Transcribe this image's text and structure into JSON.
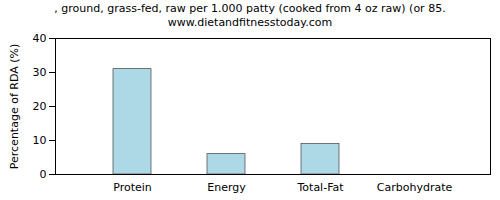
{
  "chart_data": {
    "type": "bar",
    "title": ", ground, grass-fed, raw per 1.000 patty (cooked from 4 oz raw) (or 85.",
    "subtitle": "www.dietandfitnesstoday.com",
    "y_label": "Percentage of RDA (%)",
    "categories": [
      "Protein",
      "Energy",
      "Total-Fat",
      "Carbohydrate"
    ],
    "values": [
      31,
      6,
      9,
      0
    ],
    "color": "#add8e6",
    "ylim": [
      0,
      40
    ],
    "yticks": [
      0,
      10,
      20,
      30,
      40
    ],
    "grid": false
  }
}
